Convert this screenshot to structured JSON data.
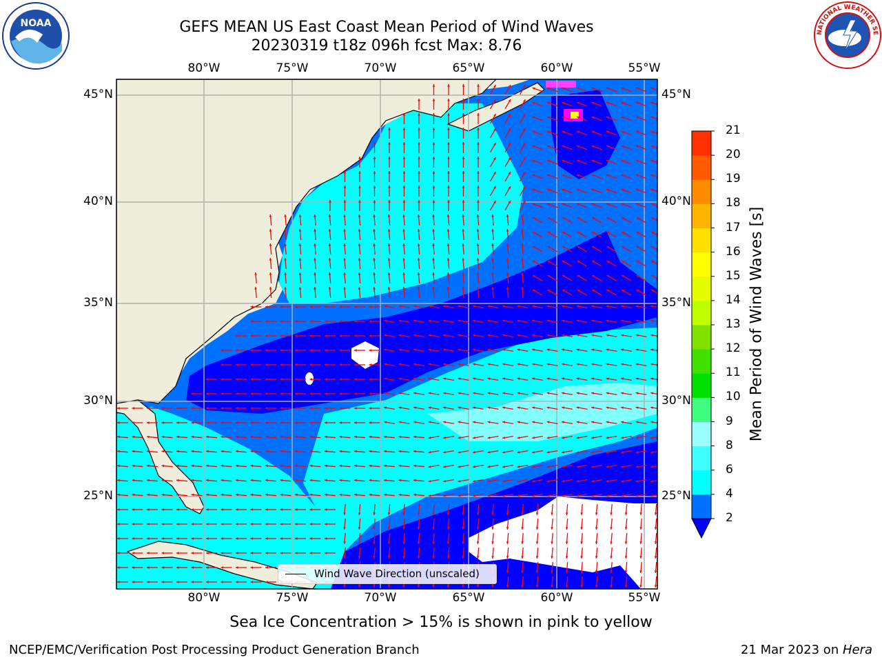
{
  "title": {
    "line1": "GEFS MEAN US East Coast Mean Period of Wind Waves",
    "line2": "20230319 t18z 096h fcst   Max: 8.76"
  },
  "logos": {
    "noaa_text": "NOAA",
    "nws_text": "NATIONAL WEATHER SERVICE"
  },
  "map": {
    "lon_ticks": [
      "80°W",
      "75°W",
      "70°W",
      "65°W",
      "60°W",
      "55°W"
    ],
    "lat_ticks": [
      "45°N",
      "40°N",
      "35°N",
      "30°N",
      "25°N"
    ],
    "legend_label": "Wind Wave Direction (unscaled)",
    "arrow_color": "#ff0000",
    "land_color": "#efeedc",
    "grid": true
  },
  "colorbar": {
    "title": "Mean Period of Wind Waves [s]",
    "ticks": [
      "21",
      "20",
      "19",
      "18",
      "17",
      "16",
      "15",
      "14",
      "13",
      "12",
      "11",
      "10",
      "9",
      "8",
      "6",
      "4",
      "2"
    ],
    "colors": [
      "#0000ff",
      "#0070ff",
      "#00ffff",
      "#40ffff",
      "#99ffff",
      "#40ff80",
      "#00e000",
      "#40e000",
      "#80e000",
      "#c0ff00",
      "#e6ff00",
      "#ffff00",
      "#ffe000",
      "#ffb400",
      "#ff8c00",
      "#ff5a00",
      "#ff3000",
      "#ff0000"
    ],
    "extend": "min"
  },
  "subnote": "Sea Ice Concentration > 15% is shown in pink to yellow",
  "footer": {
    "left": "NCEP/EMC/Verification Post Processing Product Generation Branch",
    "date": "21 Mar 2023 on ",
    "machine": "Hera"
  }
}
